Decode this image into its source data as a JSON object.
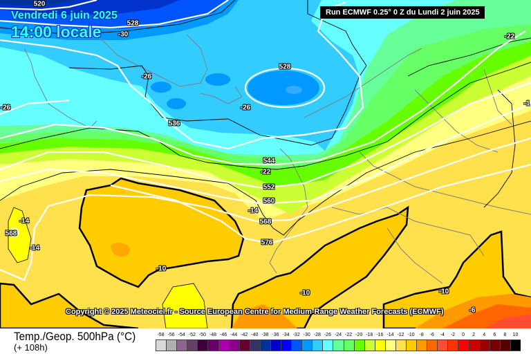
{
  "header": {
    "date": "Vendredi 6 juin 2025",
    "time": "14:00 locale",
    "run": "Run ECMWF 0.25° 0 Z du Lundi 2 juin 2025"
  },
  "copyright": "Copyright © 2025 Meteociel.fr - Source European Centre for Medium-Range Weather Forecasts (ECMWF)",
  "map": {
    "labels": [
      "520",
      "528",
      "-30",
      "528",
      "-26",
      "-26",
      "-26",
      "536",
      "544",
      "-22",
      "552",
      "560",
      "-14",
      "568",
      "576",
      "-14",
      "568",
      "-14",
      "-10",
      "-10",
      "-10",
      "-6",
      "-22",
      "-1"
    ]
  },
  "footer": {
    "parameter": "Temp./Geop. 500hPa (°C)",
    "lead_time": "(+ 108h)"
  },
  "legend": {
    "ticks": [
      "-58",
      "-56",
      "-54",
      "-52",
      "-50",
      "-48",
      "-46",
      "-44",
      "-42",
      "-40",
      "-38",
      "-36",
      "-34",
      "-32",
      "-30",
      "-28",
      "-26",
      "-24",
      "-22",
      "-20",
      "-18",
      "-16",
      "-14",
      "-12",
      "-10",
      "-8",
      "-6",
      "-4",
      "-2",
      "0",
      "2",
      "4",
      "6",
      "8",
      "10"
    ],
    "colors": [
      "#d9d9d9",
      "#b0b0b0",
      "#8f6590",
      "#654265",
      "#400040",
      "#660066",
      "#aa00aa",
      "#880088",
      "#660033",
      "#333366",
      "#003399",
      "#0000cc",
      "#0000ff",
      "#0055ff",
      "#0099ff",
      "#33ccff",
      "#66ffff",
      "#66ff99",
      "#66ff66",
      "#66ff00",
      "#ccff33",
      "#ffff00",
      "#ffff80",
      "#ffe14d",
      "#ffcc00",
      "#ff9900",
      "#ff6600",
      "#ff4d33",
      "#ff3300",
      "#ff0000",
      "#cc0000",
      "#990000",
      "#770000",
      "#550000",
      "#000000"
    ]
  }
}
